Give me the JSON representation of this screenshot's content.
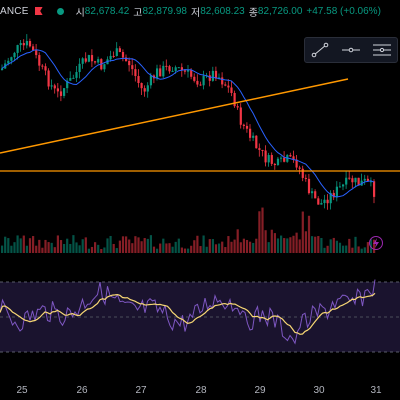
{
  "legend": {
    "symbol": "ANCE",
    "open_label": "시",
    "open_value": "82,678.42",
    "high_label": "고",
    "high_value": "82,879.98",
    "low_label": "저",
    "low_value": "82,608.23",
    "close_label": "종",
    "close_value": "82,726.00",
    "change": "+47.58 (+0.06%)"
  },
  "toolbar": {
    "tools": [
      "trend-line-tool",
      "horizontal-ray-tool",
      "horizontal-lines-tool"
    ]
  },
  "x_axis": {
    "labels": [
      "25",
      "26",
      "27",
      "28",
      "29",
      "30",
      "31"
    ]
  },
  "colors": {
    "up": "#089981",
    "down": "#f23645",
    "ma": "#2962ff",
    "drawing": "#ff9800",
    "rsi": "#7e57c2",
    "rsi_signal": "#f7d774"
  }
}
